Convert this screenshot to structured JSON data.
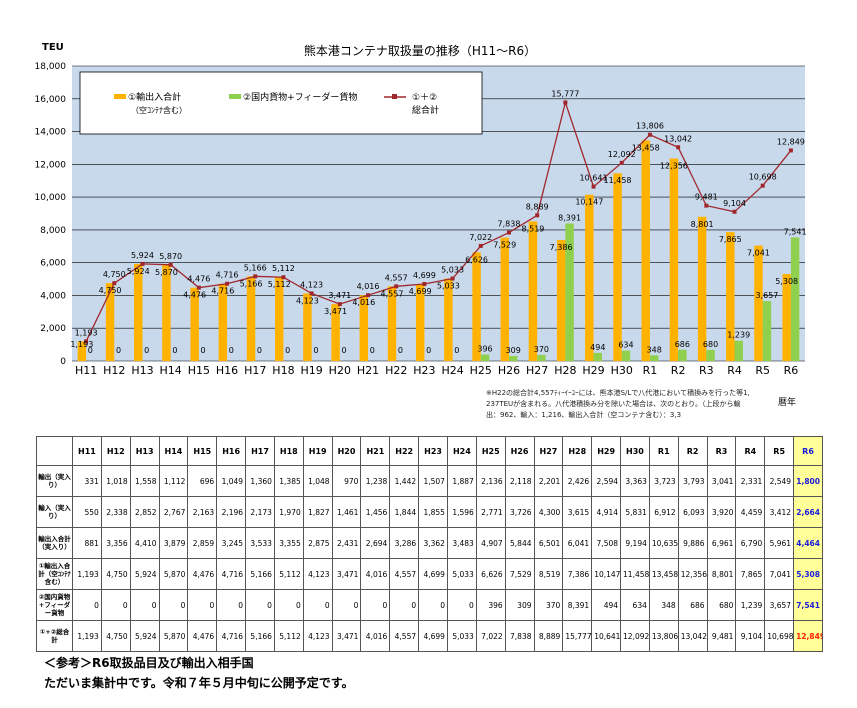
{
  "chart_data": {
    "type": "bar",
    "title": "熊本港コンテナ取扱量の推移（H11～R6）",
    "ylabel": "TEU",
    "xlabel": "暦年",
    "ylim": [
      0,
      18000
    ],
    "yticks": [
      "0",
      "2,000",
      "4,000",
      "6,000",
      "8,000",
      "10,000",
      "12,000",
      "14,000",
      "16,000",
      "18,000"
    ],
    "categories": [
      "H11",
      "H12",
      "H13",
      "H14",
      "H15",
      "H16",
      "H17",
      "H18",
      "H19",
      "H20",
      "H21",
      "H22",
      "H23",
      "H24",
      "H25",
      "H26",
      "H27",
      "H28",
      "H29",
      "H30",
      "R1",
      "R2",
      "R3",
      "R4",
      "R5",
      "R6"
    ],
    "grid": true,
    "legend_position": "top-left",
    "series": [
      {
        "name": "①輸出入合計",
        "name_sub": "（空ｺﾝﾃﾅ含む）",
        "kind": "bar",
        "color": "#ffb300",
        "values": [
          1193,
          4750,
          5924,
          5870,
          4476,
          4716,
          5166,
          5112,
          4123,
          3471,
          4016,
          4557,
          4699,
          5033,
          6626,
          7529,
          8519,
          7386,
          10147,
          11458,
          13458,
          12356,
          8801,
          7865,
          7041,
          5308
        ],
        "labels": [
          "1,193",
          "4,750",
          "5,924",
          "5,870",
          "4,476",
          "4,716",
          "5,166",
          "5,112",
          "4,123",
          "3,471",
          "4,016",
          "4,557",
          "4,699",
          "5,033",
          "6,626",
          "7,529",
          "8,519",
          "7,386",
          "10,147",
          "11,458",
          "13,458",
          "12,356",
          "8,801",
          "7,865",
          "7,041",
          "5,308"
        ]
      },
      {
        "name": "②国内貨物+フィーダー貨物",
        "kind": "bar",
        "color": "#8fd14f",
        "values": [
          0,
          0,
          0,
          0,
          0,
          0,
          0,
          0,
          0,
          0,
          0,
          0,
          0,
          0,
          396,
          309,
          370,
          8391,
          494,
          634,
          348,
          686,
          680,
          1239,
          3657,
          7541
        ],
        "labels": [
          "0",
          "0",
          "0",
          "0",
          "0",
          "0",
          "0",
          "0",
          "0",
          "0",
          "0",
          "0",
          "0",
          "0",
          "396",
          "309",
          "370",
          "8,391",
          "494",
          "634",
          "348",
          "686",
          "680",
          "1,239",
          "3,657",
          "7,541"
        ]
      },
      {
        "name": "①＋②",
        "name_sub": "総合計",
        "kind": "line",
        "color": "#a0282d",
        "values": [
          1193,
          4750,
          5924,
          5870,
          4476,
          4716,
          5166,
          5112,
          4123,
          3471,
          4016,
          4557,
          4699,
          5033,
          7022,
          7838,
          8889,
          15777,
          10641,
          12092,
          13806,
          13042,
          9481,
          9104,
          10698,
          12849
        ],
        "labels": [
          "1,193",
          "4,750",
          "5,924",
          "5,870",
          "4,476",
          "4,716",
          "5,166",
          "5,112",
          "4,123",
          "3,471",
          "4,016",
          "4,557",
          "4,699",
          "5,033",
          "7,022",
          "7,838",
          "8,889",
          "15,777",
          "10,641",
          "12,092",
          "13,806",
          "13,042",
          "9,481",
          "9,104",
          "10,698",
          "12,849"
        ]
      }
    ],
    "colors": {
      "plot_bg": "#c9d9ec",
      "highlight_bg": "#ffff99",
      "highlight_text": "#1a1adb",
      "highlight_total": "#ff2200"
    }
  },
  "note": {
    "line1": "※H22の総合計4,557ﾃｨｰｲｰﾕｰには、熊本港S/Lで八代港において積換みを行った等1,",
    "line2": "237TEUが含まれる。八代港積換み分を除いた場合は、次のとおり。（上段から輸",
    "line3": "出：962、輸入：1,216、輸出入合計（空コンテナ含む）：3,3"
  },
  "table": {
    "headers": [
      "H11",
      "H12",
      "H13",
      "H14",
      "H15",
      "H16",
      "H17",
      "H18",
      "H19",
      "H20",
      "H21",
      "H22",
      "H23",
      "H24",
      "H25",
      "H26",
      "H27",
      "H28",
      "H29",
      "H30",
      "R1",
      "R2",
      "R3",
      "R4",
      "R5",
      "R6"
    ],
    "rows": [
      {
        "label": "輸出（実入り）",
        "values": [
          "331",
          "1,018",
          "1,558",
          "1,112",
          "696",
          "1,049",
          "1,360",
          "1,385",
          "1,048",
          "970",
          "1,238",
          "1,442",
          "1,507",
          "1,887",
          "2,136",
          "2,118",
          "2,201",
          "2,426",
          "2,594",
          "3,363",
          "3,723",
          "3,793",
          "3,041",
          "2,331",
          "2,549",
          "1,800"
        ]
      },
      {
        "label": "輸入（実入り）",
        "values": [
          "550",
          "2,338",
          "2,852",
          "2,767",
          "2,163",
          "2,196",
          "2,173",
          "1,970",
          "1,827",
          "1,461",
          "1,456",
          "1,844",
          "1,855",
          "1,596",
          "2,771",
          "3,726",
          "4,300",
          "3,615",
          "4,914",
          "5,831",
          "6,912",
          "6,093",
          "3,920",
          "4,459",
          "3,412",
          "2,664"
        ]
      },
      {
        "label": "輸出入合計（実入り）",
        "values": [
          "881",
          "3,356",
          "4,410",
          "3,879",
          "2,859",
          "3,245",
          "3,533",
          "3,355",
          "2,875",
          "2,431",
          "2,694",
          "3,286",
          "3,362",
          "3,483",
          "4,907",
          "5,844",
          "6,501",
          "6,041",
          "7,508",
          "9,194",
          "10,635",
          "9,886",
          "6,961",
          "6,790",
          "5,961",
          "4,464"
        ]
      },
      {
        "label": "①輸出入合計（空ｺﾝﾃﾅ含む）",
        "values": [
          "1,193",
          "4,750",
          "5,924",
          "5,870",
          "4,476",
          "4,716",
          "5,166",
          "5,112",
          "4,123",
          "3,471",
          "4,016",
          "4,557",
          "4,699",
          "5,033",
          "6,626",
          "7,529",
          "8,519",
          "7,386",
          "10,147",
          "11,458",
          "13,458",
          "12,356",
          "8,801",
          "7,865",
          "7,041",
          "5,308"
        ]
      },
      {
        "label": "②国内貨物+フィーダー貨物",
        "values": [
          "0",
          "0",
          "0",
          "0",
          "0",
          "0",
          "0",
          "0",
          "0",
          "0",
          "0",
          "0",
          "0",
          "0",
          "396",
          "309",
          "370",
          "8,391",
          "494",
          "634",
          "348",
          "686",
          "680",
          "1,239",
          "3,657",
          "7,541"
        ]
      },
      {
        "label": "①+②総合計",
        "values": [
          "1,193",
          "4,750",
          "5,924",
          "5,870",
          "4,476",
          "4,716",
          "5,166",
          "5,112",
          "4,123",
          "3,471",
          "4,016",
          "4,557",
          "4,699",
          "5,033",
          "7,022",
          "7,838",
          "8,889",
          "15,777",
          "10,641",
          "12,092",
          "13,806",
          "13,042",
          "9,481",
          "9,104",
          "10,698",
          "12,849"
        ]
      }
    ]
  },
  "footer": {
    "line1": "＜参考＞R6取扱品目及び輸出入相手国",
    "line2": "ただいま集計中です。令和７年５月中旬に公開予定です。"
  }
}
